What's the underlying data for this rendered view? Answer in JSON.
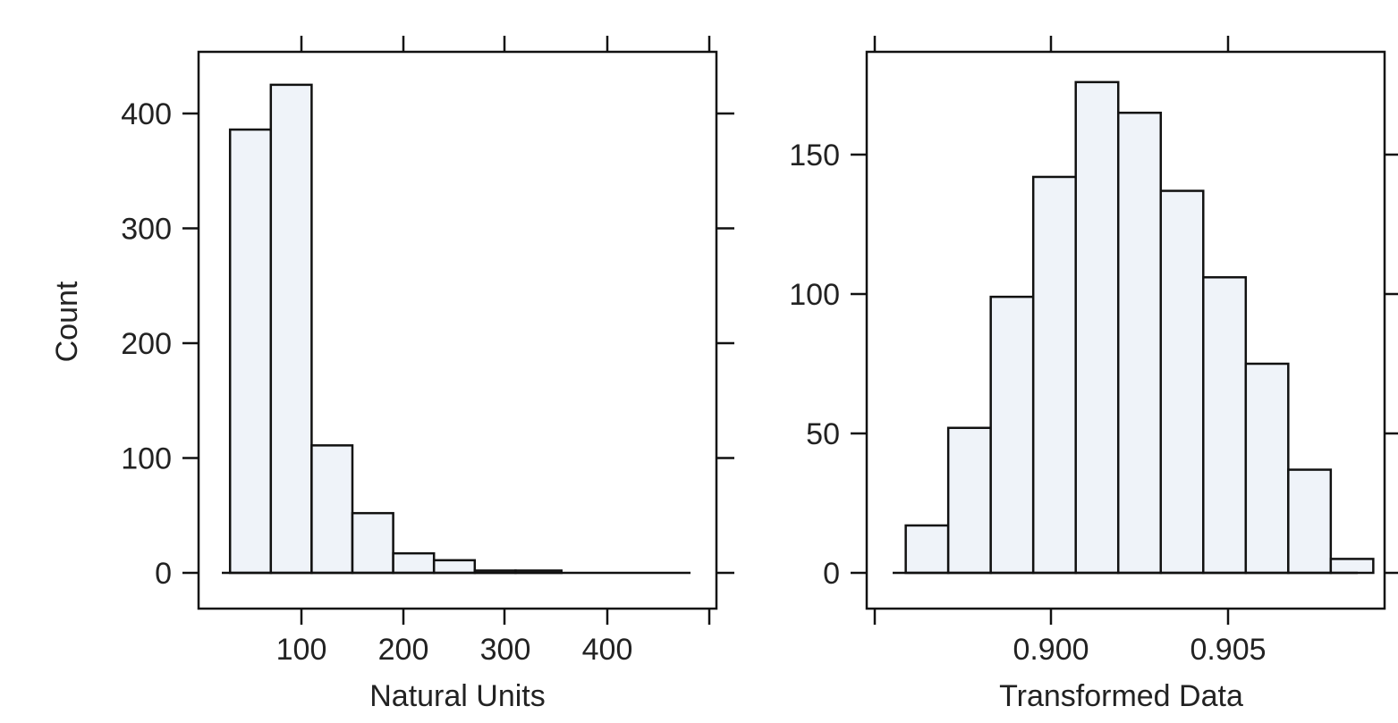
{
  "chart_data": [
    {
      "type": "bar",
      "chart_subtype": "histogram",
      "xlabel": "Natural Units",
      "ylabel": "Count",
      "xlim": [
        0,
        400
      ],
      "ylim": [
        0,
        400
      ],
      "x_ticks": [
        100,
        200,
        300,
        400
      ],
      "y_ticks": [
        0,
        100,
        200,
        300,
        400
      ],
      "bin_edges": [
        30,
        70,
        110,
        150,
        190,
        230,
        270,
        310,
        355,
        400,
        440,
        480
      ],
      "values": [
        386,
        425,
        111,
        52,
        17,
        11,
        2,
        2,
        0,
        0,
        0
      ],
      "grid": false,
      "legend": "none"
    },
    {
      "type": "bar",
      "chart_subtype": "histogram",
      "xlabel": "Transformed Data",
      "ylabel": "",
      "xlim": [
        0.895,
        0.905
      ],
      "ylim": [
        0,
        150
      ],
      "x_ticks": [
        0.9,
        0.905
      ],
      "x_tick_labels": [
        "0.900",
        "0.905"
      ],
      "y_ticks": [
        0,
        50,
        100,
        150
      ],
      "bin_edges": [
        0.8959,
        0.8971,
        0.8983,
        0.8995,
        0.9007,
        0.9019,
        0.9031,
        0.9043,
        0.9055,
        0.9067,
        0.9079,
        0.9091
      ],
      "values": [
        17,
        52,
        99,
        142,
        176,
        165,
        137,
        106,
        75,
        37,
        5
      ],
      "grid": false,
      "legend": "none"
    }
  ]
}
